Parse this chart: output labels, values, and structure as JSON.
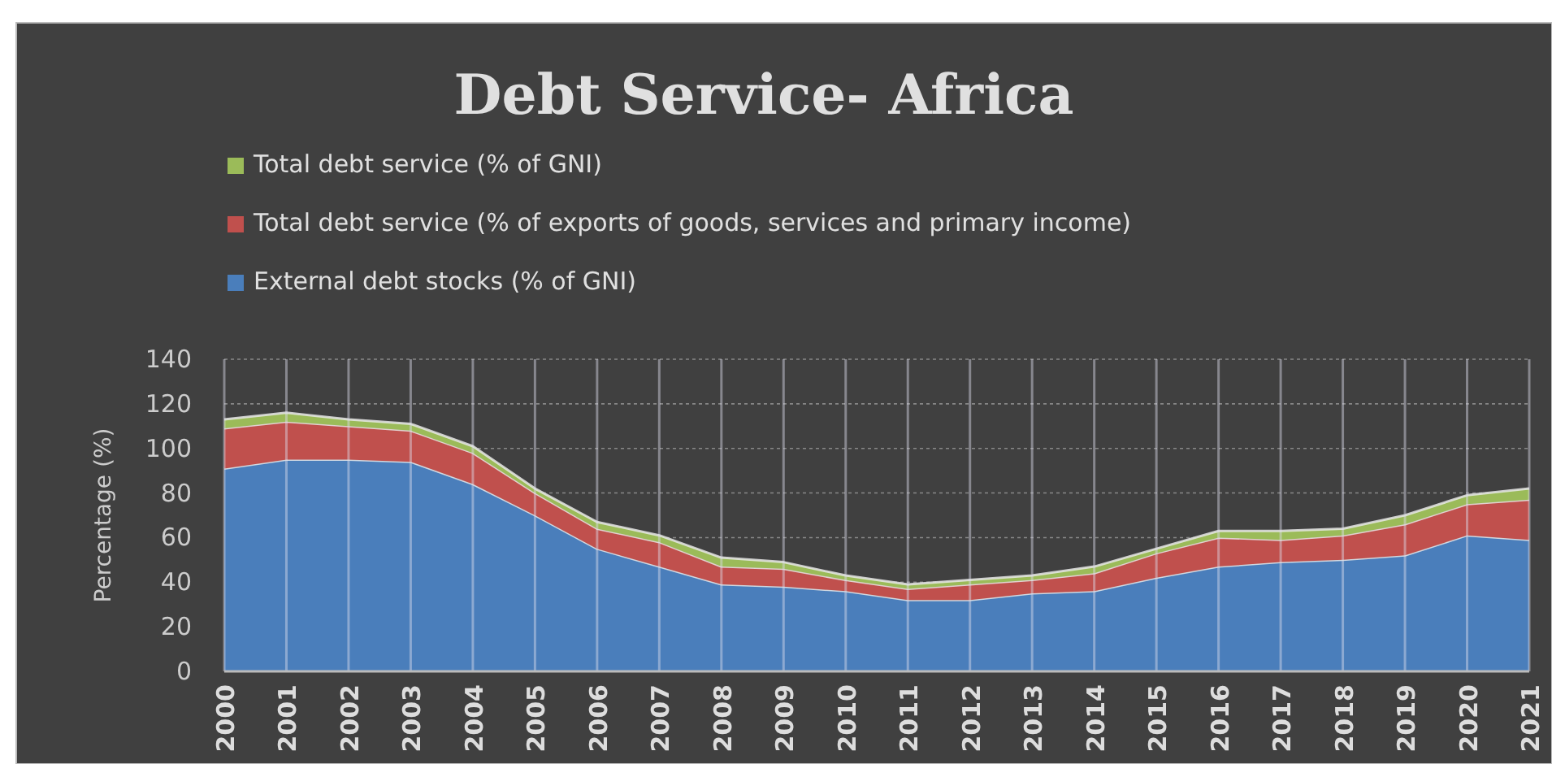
{
  "chart_data": {
    "type": "area",
    "title": "Debt Service- Africa",
    "ylabel": "Percentage (%)",
    "categories": [
      "2000",
      "2001",
      "2002",
      "2003",
      "2004",
      "2005",
      "2006",
      "2007",
      "2008",
      "2009",
      "2010",
      "2011",
      "2012",
      "2013",
      "2014",
      "2015",
      "2016",
      "2017",
      "2018",
      "2019",
      "2020",
      "2021"
    ],
    "stacked": true,
    "series": [
      {
        "name": "External debt stocks (% of GNI)",
        "color": "#4a7ebb",
        "values": [
          91,
          95,
          95,
          94,
          84,
          70,
          55,
          47,
          39,
          38,
          36,
          32,
          32,
          35,
          36,
          42,
          47,
          49,
          50,
          52,
          61,
          59
        ]
      },
      {
        "name": "Total debt service (% of exports of goods, services and primary income)",
        "color": "#c0504d",
        "values": [
          18,
          17,
          15,
          14,
          14,
          10,
          9,
          11,
          8,
          8,
          5,
          5,
          7,
          6,
          8,
          11,
          13,
          10,
          11,
          14,
          14,
          18
        ]
      },
      {
        "name": "Total debt service (% of GNI)",
        "color": "#9bbb59",
        "values": [
          4,
          4,
          3,
          3,
          3,
          2,
          3,
          3,
          4,
          3,
          2,
          2,
          2,
          2,
          3,
          2,
          3,
          4,
          3,
          4,
          4,
          5
        ]
      }
    ],
    "ylim": [
      0,
      140
    ],
    "yticks": [
      0,
      20,
      40,
      60,
      80,
      100,
      120,
      140
    ],
    "grid": true,
    "legend": "top left"
  }
}
